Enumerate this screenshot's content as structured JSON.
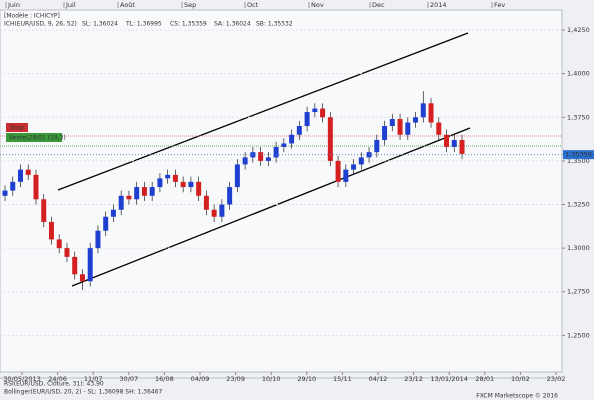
{
  "chart_data": {
    "type": "candlestick",
    "title": "[Modèle : ICHICYP]",
    "indicator": {
      "name": "ICH(EUR/USD, 9, 26, 52)",
      "sl": "SL: 1,36024",
      "tl": "TL: 1,36995",
      "cs": "CS: 1,35359",
      "sa": "SA: 1,36024",
      "sb": "SB: 1,35532"
    },
    "order_labels": [
      "Stop",
      "Vente(28/01 (19,3)"
    ],
    "last_price": {
      "value": 1.35359,
      "label": "1,35359"
    },
    "months": [
      "Juin",
      "Juil",
      "Août",
      "Sep",
      "Oct",
      "Nov",
      "Dec",
      "2014",
      "Fev"
    ],
    "dates": [
      "30/05/2013",
      "24/06",
      "11/07",
      "30/07",
      "16/08",
      "04/09",
      "23/09",
      "10/10",
      "29/10",
      "15/11",
      "04/12",
      "23/12",
      "13/01/2014",
      "28/01",
      "10/02",
      "23/02"
    ],
    "footer": [
      "RSI(EUR/USD, Clôture, 31): 43,90",
      "Bollinger(EUR/USD, 20, 2) - SL: 1,36098  SH: 1,36467",
      "FXCM Marketscope © 2016"
    ],
    "ylim": [
      1.229,
      1.4365
    ],
    "yticks": [
      {
        "value": 1.25,
        "label": "1,2500"
      },
      {
        "value": 1.275,
        "label": "1,2750"
      },
      {
        "value": 1.3,
        "label": "1,3000"
      },
      {
        "value": 1.325,
        "label": "1,3250"
      },
      {
        "value": 1.35,
        "label": "1,3500"
      },
      {
        "value": 1.375,
        "label": "1,3750"
      },
      {
        "value": 1.4,
        "label": "1,4000"
      },
      {
        "value": 1.425,
        "label": "1,4250"
      }
    ],
    "up_color": "#1f3fd0",
    "down_color": "#d42020",
    "candles": [
      [
        1.33,
        1.336,
        1.327,
        1.333
      ],
      [
        1.333,
        1.341,
        1.33,
        1.338
      ],
      [
        1.338,
        1.348,
        1.335,
        1.345
      ],
      [
        1.345,
        1.348,
        1.339,
        1.342
      ],
      [
        1.342,
        1.345,
        1.325,
        1.328
      ],
      [
        1.328,
        1.331,
        1.312,
        1.315
      ],
      [
        1.315,
        1.318,
        1.302,
        1.305
      ],
      [
        1.305,
        1.308,
        1.297,
        1.3
      ],
      [
        1.3,
        1.303,
        1.292,
        1.295
      ],
      [
        1.295,
        1.298,
        1.282,
        1.285
      ],
      [
        1.285,
        1.288,
        1.276,
        1.281
      ],
      [
        1.281,
        1.303,
        1.278,
        1.3
      ],
      [
        1.3,
        1.313,
        1.297,
        1.31
      ],
      [
        1.31,
        1.321,
        1.307,
        1.318
      ],
      [
        1.318,
        1.325,
        1.315,
        1.322
      ],
      [
        1.322,
        1.333,
        1.319,
        1.33
      ],
      [
        1.33,
        1.333,
        1.325,
        1.328
      ],
      [
        1.328,
        1.338,
        1.325,
        1.335
      ],
      [
        1.335,
        1.338,
        1.327,
        1.33
      ],
      [
        1.33,
        1.338,
        1.327,
        1.335
      ],
      [
        1.335,
        1.343,
        1.332,
        1.34
      ],
      [
        1.34,
        1.345,
        1.337,
        1.342
      ],
      [
        1.342,
        1.345,
        1.335,
        1.338
      ],
      [
        1.338,
        1.341,
        1.332,
        1.335
      ],
      [
        1.335,
        1.341,
        1.332,
        1.338
      ],
      [
        1.338,
        1.341,
        1.327,
        1.33
      ],
      [
        1.33,
        1.333,
        1.319,
        1.322
      ],
      [
        1.322,
        1.325,
        1.315,
        1.318
      ],
      [
        1.318,
        1.328,
        1.315,
        1.325
      ],
      [
        1.325,
        1.338,
        1.322,
        1.335
      ],
      [
        1.335,
        1.351,
        1.332,
        1.348
      ],
      [
        1.348,
        1.355,
        1.345,
        1.352
      ],
      [
        1.352,
        1.358,
        1.349,
        1.355
      ],
      [
        1.355,
        1.358,
        1.347,
        1.35
      ],
      [
        1.35,
        1.355,
        1.347,
        1.352
      ],
      [
        1.352,
        1.361,
        1.349,
        1.358
      ],
      [
        1.358,
        1.363,
        1.355,
        1.36
      ],
      [
        1.36,
        1.368,
        1.357,
        1.365
      ],
      [
        1.365,
        1.373,
        1.362,
        1.37
      ],
      [
        1.37,
        1.381,
        1.367,
        1.378
      ],
      [
        1.378,
        1.383,
        1.375,
        1.38
      ],
      [
        1.38,
        1.383,
        1.372,
        1.375
      ],
      [
        1.375,
        1.378,
        1.347,
        1.35
      ],
      [
        1.35,
        1.353,
        1.335,
        1.338
      ],
      [
        1.338,
        1.348,
        1.335,
        1.345
      ],
      [
        1.345,
        1.351,
        1.342,
        1.348
      ],
      [
        1.348,
        1.355,
        1.345,
        1.352
      ],
      [
        1.352,
        1.358,
        1.349,
        1.355
      ],
      [
        1.355,
        1.365,
        1.352,
        1.362
      ],
      [
        1.362,
        1.373,
        1.359,
        1.37
      ],
      [
        1.37,
        1.377,
        1.367,
        1.374
      ],
      [
        1.374,
        1.377,
        1.362,
        1.365
      ],
      [
        1.365,
        1.375,
        1.362,
        1.372
      ],
      [
        1.372,
        1.378,
        1.369,
        1.375
      ],
      [
        1.375,
        1.39,
        1.372,
        1.383
      ],
      [
        1.383,
        1.386,
        1.369,
        1.372
      ],
      [
        1.372,
        1.375,
        1.362,
        1.365
      ],
      [
        1.365,
        1.368,
        1.355,
        1.358
      ],
      [
        1.358,
        1.365,
        1.355,
        1.362
      ],
      [
        1.362,
        1.365,
        1.351,
        1.354
      ]
    ]
  }
}
